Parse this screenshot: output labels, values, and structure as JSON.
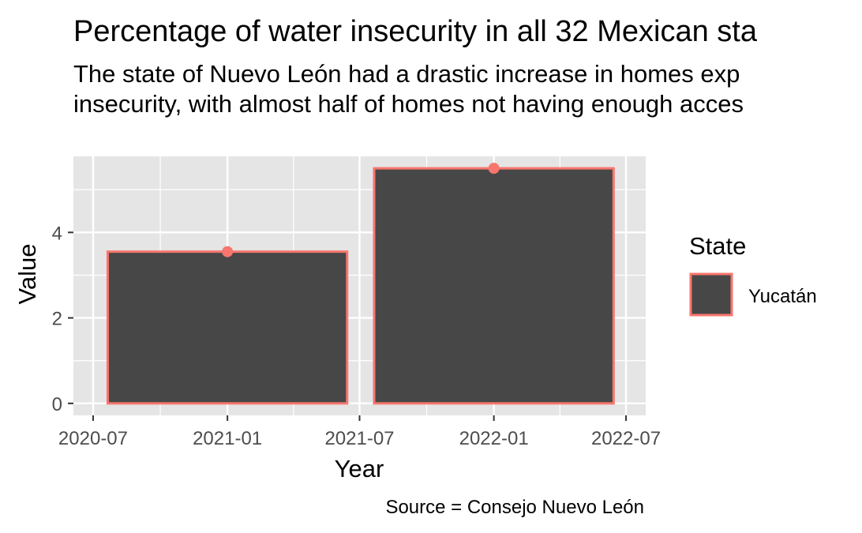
{
  "chart_data": {
    "type": "bar",
    "title": "Percentage of water insecurity in all 32 Mexican sta",
    "subtitle_lines": [
      "The state of Nuevo León had a drastic increase in homes exp",
      "insecurity, with almost half of homes not having enough acces"
    ],
    "caption": "Source = Consejo Nuevo León",
    "xlabel": "Year",
    "ylabel": "Value",
    "x_ticks": [
      "2020-07",
      "2021-01",
      "2021-07",
      "2022-01",
      "2022-07"
    ],
    "x_range": [
      "2020-06-04",
      "2022-07-28"
    ],
    "y_ticks": [
      0,
      2,
      4
    ],
    "ylim": [
      -0.28,
      5.78
    ],
    "grid": true,
    "legend": {
      "title": "State",
      "position": "right",
      "items": [
        {
          "label": "Yucatán",
          "fill": "#474747",
          "border": "#F8766D"
        }
      ]
    },
    "series": [
      {
        "name": "Yucatán",
        "x": [
          "2021-01-01",
          "2022-01-01"
        ],
        "values": [
          3.55,
          5.5
        ],
        "bar_width_days": 328
      }
    ],
    "colors": {
      "panel": "#E5E5E5",
      "grid": "#FFFFFF",
      "bar_fill": "#474747",
      "bar_border": "#F8766D",
      "point": "#F8766D"
    }
  }
}
